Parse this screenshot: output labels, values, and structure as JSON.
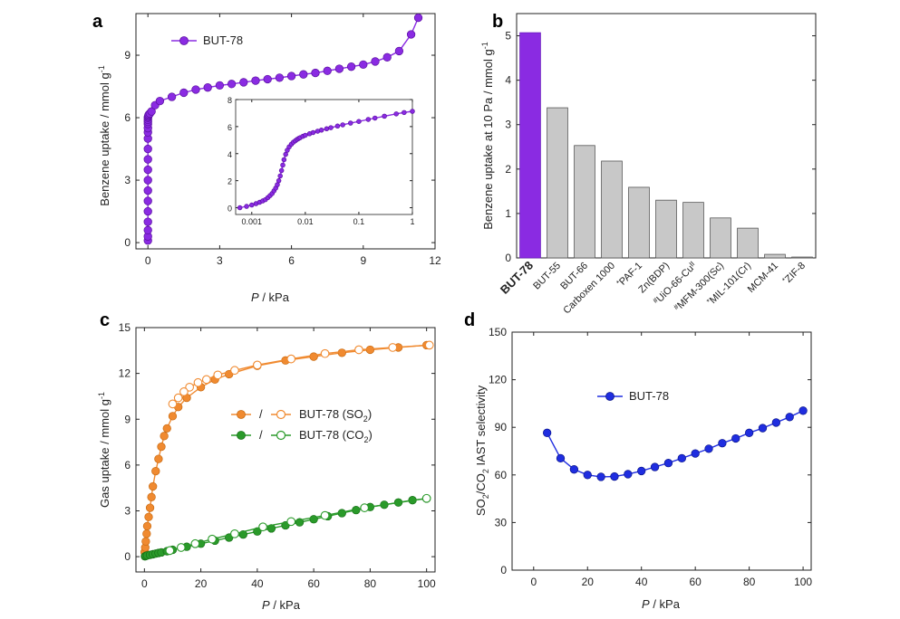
{
  "panels": {
    "a": {
      "letter": "a"
    },
    "b": {
      "letter": "b"
    },
    "c": {
      "letter": "c"
    },
    "d": {
      "letter": "d"
    }
  },
  "colors": {
    "purple": "#8a2be2",
    "purple_light": "#b070ff",
    "orange": "#f08a30",
    "green": "#2a9a2a",
    "blue": "#1f2de0",
    "bar_gray": "#c8c8c8",
    "bar_edge": "#555555"
  },
  "chart_data": [
    {
      "panel": "a",
      "type": "line",
      "xlabel_italic": "P",
      "xlabel_rest": " / kPa",
      "ylabel": "Benzene uptake / mmol g",
      "ylabel_sup": "-1",
      "xlim": [
        -0.5,
        12
      ],
      "ylim": [
        -0.3,
        11
      ],
      "xticks": [
        0,
        3,
        6,
        9,
        12
      ],
      "yticks": [
        0,
        3,
        6,
        9
      ],
      "legend": "BUT-78",
      "series": [
        {
          "name": "BUT-78",
          "x": [
            0,
            0,
            0,
            0,
            0,
            0,
            0,
            0,
            0,
            0,
            0,
            0,
            0,
            0,
            0,
            0,
            0,
            0,
            0.01,
            0.02,
            0.04,
            0.08,
            0.15,
            0.3,
            0.5,
            1.0,
            1.5,
            2.0,
            2.5,
            3.0,
            3.5,
            4.0,
            4.5,
            5.0,
            5.5,
            6.0,
            6.5,
            7.0,
            7.5,
            8.0,
            8.5,
            9.0,
            9.5,
            10.0,
            10.5,
            11.0,
            11.3
          ],
          "y": [
            0.1,
            0.3,
            0.6,
            1.0,
            1.5,
            2.0,
            2.5,
            3.0,
            3.5,
            4.0,
            4.5,
            5.0,
            5.3,
            5.5,
            5.7,
            5.8,
            5.9,
            6.0,
            6.05,
            6.1,
            6.15,
            6.2,
            6.3,
            6.6,
            6.8,
            7.0,
            7.2,
            7.35,
            7.45,
            7.55,
            7.62,
            7.7,
            7.78,
            7.85,
            7.92,
            8.0,
            8.08,
            8.15,
            8.25,
            8.35,
            8.45,
            8.55,
            8.7,
            8.9,
            9.2,
            10.0,
            10.8
          ]
        }
      ],
      "inset": {
        "xscale": "log",
        "xlim": [
          0.0005,
          1.0
        ],
        "ylim": [
          -0.5,
          8
        ],
        "xtick_labels": [
          "0.001",
          "0.01",
          "0.1",
          "1"
        ],
        "xtick_values": [
          0.001,
          0.01,
          0.1,
          1
        ],
        "ytick_labels": [
          "0",
          "2",
          "4",
          "6",
          "8"
        ],
        "ytick_values": [
          0,
          2,
          4,
          6,
          8
        ],
        "series": {
          "x": [
            0.0006,
            0.0008,
            0.001,
            0.0012,
            0.0014,
            0.0016,
            0.0018,
            0.002,
            0.0022,
            0.0024,
            0.0026,
            0.0028,
            0.003,
            0.0032,
            0.0034,
            0.0036,
            0.0038,
            0.004,
            0.0043,
            0.0046,
            0.005,
            0.0055,
            0.006,
            0.0065,
            0.007,
            0.0075,
            0.008,
            0.009,
            0.01,
            0.012,
            0.014,
            0.017,
            0.02,
            0.025,
            0.03,
            0.04,
            0.05,
            0.07,
            0.1,
            0.15,
            0.2,
            0.3,
            0.5,
            0.7,
            1.0
          ],
          "y": [
            0.0,
            0.1,
            0.2,
            0.3,
            0.4,
            0.5,
            0.6,
            0.75,
            0.9,
            1.05,
            1.25,
            1.45,
            1.7,
            2.0,
            2.35,
            2.75,
            3.15,
            3.55,
            3.95,
            4.25,
            4.5,
            4.7,
            4.85,
            4.95,
            5.05,
            5.12,
            5.18,
            5.28,
            5.36,
            5.47,
            5.56,
            5.66,
            5.74,
            5.84,
            5.92,
            6.04,
            6.13,
            6.26,
            6.38,
            6.53,
            6.63,
            6.77,
            6.94,
            7.04,
            7.13
          ]
        }
      }
    },
    {
      "panel": "b",
      "type": "bar",
      "ylabel": "Benzene uptake at 10 Pa / mmol g",
      "ylabel_sup": "-1",
      "ylim": [
        0,
        5.5
      ],
      "yticks": [
        0,
        1,
        2,
        3,
        4,
        5
      ],
      "categories": [
        {
          "pre": "",
          "sup": "",
          "main": "BUT-78",
          "bold": true
        },
        {
          "pre": "",
          "sup": "",
          "main": "BUT-55",
          "bold": false
        },
        {
          "pre": "",
          "sup": "",
          "main": "BUT-66",
          "bold": false
        },
        {
          "pre": "",
          "sup": "",
          "main": "Carboxen 1000",
          "bold": false
        },
        {
          "pre": "",
          "sup": "*",
          "main": "PAF-1",
          "bold": false
        },
        {
          "pre": "",
          "sup": "",
          "main": "Zn(BDP)",
          "bold": false
        },
        {
          "pre": "",
          "sup": "#",
          "main": "UiO-66-Cu",
          "post_sup": "II",
          "bold": false
        },
        {
          "pre": "",
          "sup": "#",
          "main": "MFM-300(Sc)",
          "bold": false
        },
        {
          "pre": "",
          "sup": "*",
          "main": "MIL-101(Cr)",
          "bold": false
        },
        {
          "pre": "",
          "sup": "",
          "main": "MCM-41",
          "bold": false
        },
        {
          "pre": "",
          "sup": "*",
          "main": "ZIF-8",
          "bold": false
        }
      ],
      "values": [
        5.07,
        3.38,
        2.53,
        2.18,
        1.59,
        1.3,
        1.25,
        0.9,
        0.67,
        0.08,
        0.02
      ]
    },
    {
      "panel": "c",
      "type": "line",
      "xlabel_italic": "P",
      "xlabel_rest": " / kPa",
      "ylabel": "Gas uptake / mmol g",
      "ylabel_sup": "-1",
      "xlim": [
        -3,
        103
      ],
      "ylim": [
        -1,
        15
      ],
      "xticks": [
        0,
        20,
        40,
        60,
        80,
        100
      ],
      "yticks": [
        0,
        3,
        6,
        9,
        12,
        15
      ],
      "legend": [
        {
          "slash": "/",
          "label": "BUT-78 (SO",
          "sub": "2",
          "close": ")"
        },
        {
          "slash": "/",
          "label": "BUT-78 (CO",
          "sub": "2",
          "close": ")"
        }
      ],
      "series": [
        {
          "name": "SO2 adsorption",
          "color_key": "orange",
          "filled": true,
          "x": [
            0.1,
            0.3,
            0.5,
            0.8,
            1.0,
            1.5,
            2.0,
            2.5,
            3.0,
            4.0,
            5.0,
            6.0,
            7.0,
            8.0,
            10.0,
            12.0,
            15.0,
            20.0,
            25.0,
            30.0,
            40.0,
            50.0,
            60.0,
            70.0,
            80.0,
            90.0,
            100.0
          ],
          "y": [
            0.3,
            0.6,
            1.0,
            1.5,
            2.0,
            2.6,
            3.2,
            3.9,
            4.6,
            5.6,
            6.4,
            7.2,
            7.9,
            8.4,
            9.2,
            9.8,
            10.4,
            11.1,
            11.6,
            11.95,
            12.5,
            12.85,
            13.1,
            13.35,
            13.55,
            13.7,
            13.85
          ]
        },
        {
          "name": "SO2 desorption",
          "color_key": "orange",
          "filled": false,
          "x": [
            101.0,
            88.0,
            76.0,
            64.0,
            52.0,
            40.0,
            32.0,
            26.0,
            22.0,
            19.0,
            16.0,
            14.0,
            12.0,
            10.0
          ],
          "y": [
            13.85,
            13.7,
            13.55,
            13.3,
            12.95,
            12.55,
            12.2,
            11.9,
            11.6,
            11.4,
            11.1,
            10.8,
            10.4,
            10.0
          ]
        },
        {
          "name": "CO2 adsorption",
          "color_key": "green",
          "filled": true,
          "x": [
            0.2,
            0.5,
            1.0,
            2.0,
            3.0,
            4.0,
            5.0,
            6.0,
            8.0,
            10.0,
            15.0,
            20.0,
            25.0,
            30.0,
            35.0,
            40.0,
            45.0,
            50.0,
            55.0,
            60.0,
            65.0,
            70.0,
            75.0,
            80.0,
            85.0,
            90.0,
            95.0,
            100.0
          ],
          "y": [
            0.02,
            0.05,
            0.08,
            0.12,
            0.16,
            0.2,
            0.24,
            0.28,
            0.36,
            0.45,
            0.65,
            0.85,
            1.05,
            1.25,
            1.45,
            1.65,
            1.85,
            2.05,
            2.25,
            2.45,
            2.65,
            2.85,
            3.05,
            3.25,
            3.4,
            3.55,
            3.7,
            3.8
          ]
        },
        {
          "name": "CO2 desorption",
          "color_key": "green",
          "filled": false,
          "x": [
            100.0,
            78.0,
            64.0,
            52.0,
            42.0,
            32.0,
            24.0,
            18.0,
            13.0,
            9.0
          ],
          "y": [
            3.82,
            3.2,
            2.7,
            2.3,
            1.95,
            1.5,
            1.15,
            0.85,
            0.6,
            0.4
          ]
        }
      ]
    },
    {
      "panel": "d",
      "type": "line",
      "xlabel_italic": "P",
      "xlabel_rest": " / kPa",
      "ylabel_parts": {
        "a": "SO",
        "b": "2",
        "c": "/CO",
        "d": "2",
        "e": " IAST selectivity"
      },
      "xlim": [
        -8,
        103
      ],
      "ylim": [
        0,
        150
      ],
      "xticks": [
        0,
        20,
        40,
        60,
        80,
        100
      ],
      "yticks": [
        0,
        30,
        60,
        90,
        120,
        150
      ],
      "legend": "BUT-78",
      "series": [
        {
          "name": "BUT-78",
          "x": [
            5,
            10,
            15,
            20,
            25,
            30,
            35,
            40,
            45,
            50,
            55,
            60,
            65,
            70,
            75,
            80,
            85,
            90,
            95,
            100
          ],
          "y": [
            86.5,
            70.5,
            63.5,
            60.0,
            58.8,
            59.0,
            60.5,
            62.5,
            65.0,
            67.5,
            70.5,
            73.5,
            76.5,
            80.0,
            83.0,
            86.5,
            89.5,
            93.0,
            96.5,
            100.5
          ]
        }
      ]
    }
  ]
}
